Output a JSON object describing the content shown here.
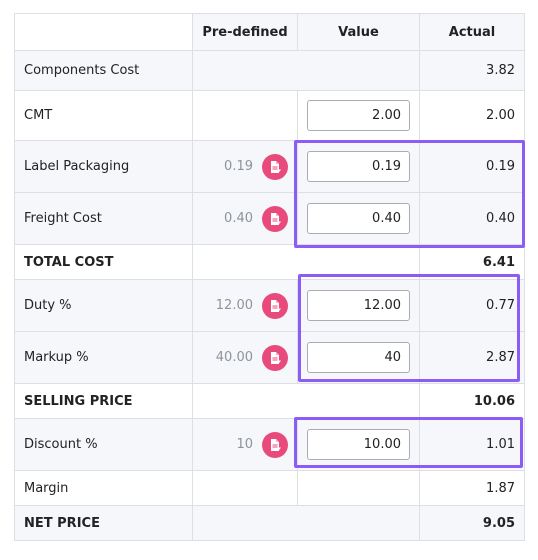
{
  "headers": {
    "predefined": "Pre-defined",
    "value": "Value",
    "actual": "Actual"
  },
  "rows": {
    "components": {
      "label": "Components Cost",
      "actual": "3.82"
    },
    "cmt": {
      "label": "CMT",
      "value": "2.00",
      "actual": "2.00"
    },
    "label_packaging": {
      "label": "Label Packaging",
      "predefined": "0.19",
      "value": "0.19",
      "actual": "0.19"
    },
    "freight": {
      "label": "Freight Cost",
      "predefined": "0.40",
      "value": "0.40",
      "actual": "0.40"
    },
    "total_cost": {
      "label": "TOTAL COST",
      "actual": "6.41"
    },
    "duty": {
      "label": "Duty %",
      "predefined": "12.00",
      "value": "12.00",
      "actual": "0.77"
    },
    "markup": {
      "label": "Markup %",
      "predefined": "40.00",
      "value": "40",
      "actual": "2.87"
    },
    "selling_price": {
      "label": "SELLING PRICE",
      "actual": "10.06"
    },
    "discount": {
      "label": "Discount %",
      "predefined": "10",
      "value": "10.00",
      "actual": "1.01"
    },
    "margin": {
      "label": "Margin",
      "actual": "1.87"
    },
    "net_price": {
      "label": "NET PRICE",
      "actual": "9.05"
    }
  },
  "icons": {
    "apply_predefined": "apply-predefined-icon"
  },
  "colors": {
    "accent_pink": "#e84b7b",
    "highlight_purple": "#8b5cf6",
    "row_shade": "#f5f7fa"
  }
}
